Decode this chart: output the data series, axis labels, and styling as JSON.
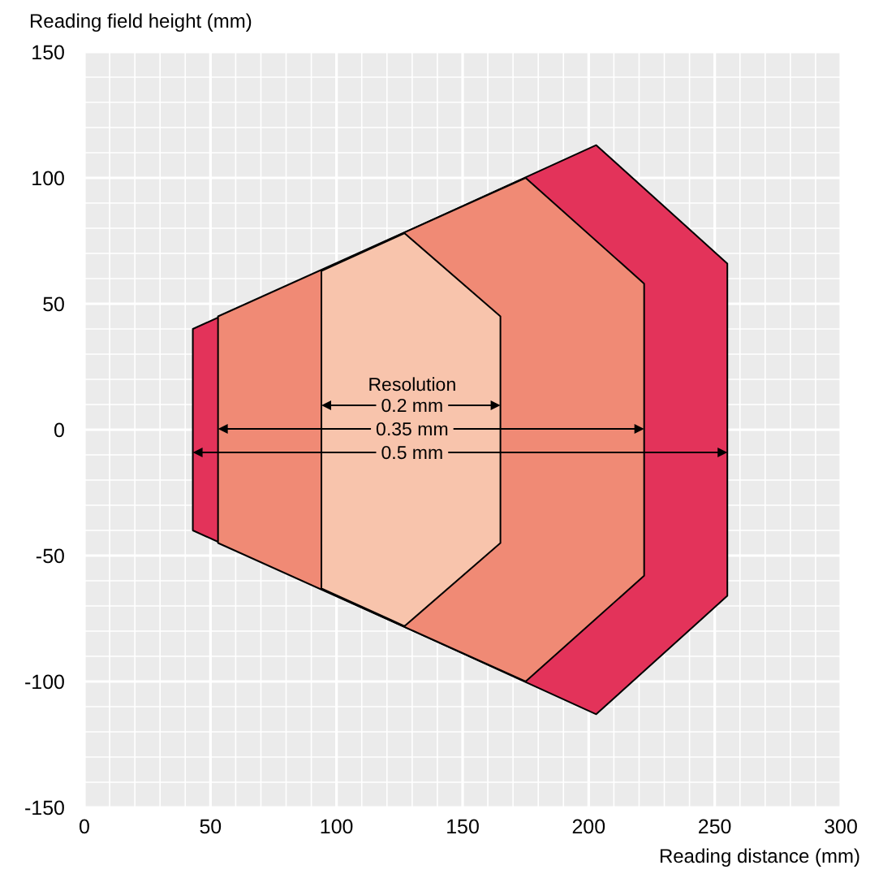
{
  "chart_data": {
    "type": "area",
    "xlabel": "Reading distance (mm)",
    "ylabel": "Reading field height (mm)",
    "legend_title": "Resolution",
    "xlim": [
      0,
      300
    ],
    "xticks": [
      0,
      50,
      100,
      150,
      200,
      250,
      300
    ],
    "ylim": [
      -150,
      150
    ],
    "yticks": [
      -150,
      -100,
      -50,
      0,
      50,
      100,
      150
    ],
    "grid": true,
    "series": [
      {
        "name": "0.5 mm",
        "color": "#e3335a",
        "x": [
          43,
          203,
          255
        ],
        "values": [
          40,
          113,
          66
        ]
      },
      {
        "color": "#e3335a",
        "x": [
          43,
          203,
          255
        ],
        "values": [
          -40,
          -113,
          -66
        ]
      },
      {
        "name": "0.35 mm",
        "color": "#f08a75",
        "x": [
          53,
          175,
          222
        ],
        "values": [
          45,
          100,
          58
        ]
      },
      {
        "color": "#f08a75",
        "x": [
          53,
          175,
          222
        ],
        "values": [
          -45,
          -100,
          -58
        ]
      },
      {
        "name": "0.2 mm",
        "color": "#f8c4ac",
        "x": [
          94,
          127,
          165
        ],
        "values": [
          63,
          78,
          45
        ]
      },
      {
        "color": "#f8c4ac",
        "x": [
          94,
          127,
          165
        ],
        "values": [
          -63,
          -78,
          -45
        ]
      }
    ]
  }
}
